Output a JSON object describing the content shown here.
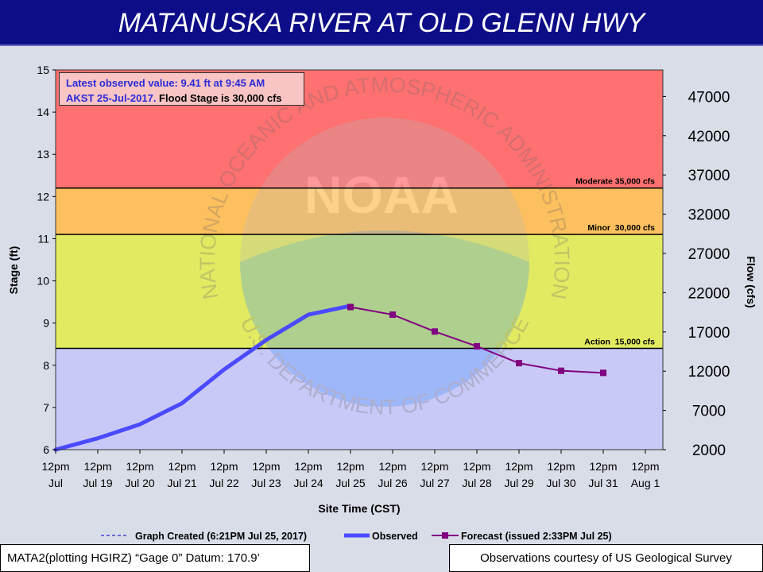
{
  "header": {
    "title": "MATANUSKA RIVER AT OLD GLENN HWY"
  },
  "info_box": {
    "line1": "Latest observed value: 9.41 ft at 9:45 AM",
    "line2_blue": "AKST 25-Jul-2017.",
    "line2_dark": " Flood Stage is 30,000  cfs"
  },
  "footer": {
    "left": "MATA2(plotting HGIRZ) “Gage 0” Datum: 170.9’",
    "right": "Observations courtesy of US Geological Survey"
  },
  "colors": {
    "header_bg": "#0d0d88",
    "moderate_zone": "#ff7070",
    "minor_zone": "#fdc05e",
    "action_zone": "#e2ea62",
    "normal_zone": "#c9c9f7",
    "observed": "#4a4aff",
    "forecast": "#800080"
  },
  "watermark": {
    "text_top": "NATIONAL OCEANIC AND ATMOSPHERIC ADMINISTRATION",
    "text_bottom": "U.S. DEPARTMENT OF COMMERCE",
    "logo": "NOAA"
  },
  "chart_data": {
    "type": "line",
    "xlabel": "Site Time (CST)",
    "ylabel": "Stage (ft)",
    "y2label": "Flow (cfs)",
    "ylim": [
      6,
      15
    ],
    "y_ticks": [
      6,
      7,
      8,
      9,
      10,
      11,
      12,
      13,
      14,
      15
    ],
    "y2_ticks": [
      "2000",
      "7000",
      "12000",
      "17000",
      "22000",
      "27000",
      "32000",
      "37000",
      "42000",
      "47000"
    ],
    "x_ticks": [
      [
        "12pm",
        "Jul"
      ],
      [
        "12pm",
        "Jul 19"
      ],
      [
        "12pm",
        "Jul 20"
      ],
      [
        "12pm",
        "Jul 21"
      ],
      [
        "12pm",
        "Jul 22"
      ],
      [
        "12pm",
        "Jul 23"
      ],
      [
        "12pm",
        "Jul 24"
      ],
      [
        "12pm",
        "Jul 25"
      ],
      [
        "12pm",
        "Jul 26"
      ],
      [
        "12pm",
        "Jul 27"
      ],
      [
        "12pm",
        "Jul 28"
      ],
      [
        "12pm",
        "Jul 29"
      ],
      [
        "12pm",
        "Jul 30"
      ],
      [
        "12pm",
        "Jul 31"
      ],
      [
        "12pm",
        "Aug 1"
      ]
    ],
    "thresholds": [
      {
        "label": "Moderate 35,000 cfs",
        "stage": 12.2
      },
      {
        "label": "Minor  30,000 cfs",
        "stage": 11.1
      },
      {
        "label": "Action  15,000 cfs",
        "stage": 8.4
      }
    ],
    "series": [
      {
        "name": "Observed",
        "x": [
          "Jul 18 12pm",
          "Jul 19 12pm",
          "Jul 20 12pm",
          "Jul 21 12pm",
          "Jul 22 12pm",
          "Jul 23 12pm",
          "Jul 24 12pm",
          "Jul 25 12pm"
        ],
        "y": [
          6.0,
          6.27,
          6.6,
          7.1,
          7.9,
          8.6,
          9.2,
          9.41
        ]
      },
      {
        "name": "Forecast (issued 2:33PM Jul 25)",
        "x": [
          "Jul 25 12pm",
          "Jul 26 12pm",
          "Jul 27 12pm",
          "Jul 28 12pm",
          "Jul 29 12pm",
          "Jul 30 12pm",
          "Jul 31 12pm"
        ],
        "y": [
          9.38,
          9.2,
          8.8,
          8.45,
          8.05,
          7.87,
          7.82
        ]
      }
    ],
    "legend": [
      {
        "label": "Graph Created (6:21PM Jul 25, 2017)",
        "style": "dashed"
      },
      {
        "label": "Observed",
        "style": "thick-line"
      },
      {
        "label": "Forecast (issued 2:33PM Jul 25)",
        "style": "line-square"
      }
    ]
  }
}
